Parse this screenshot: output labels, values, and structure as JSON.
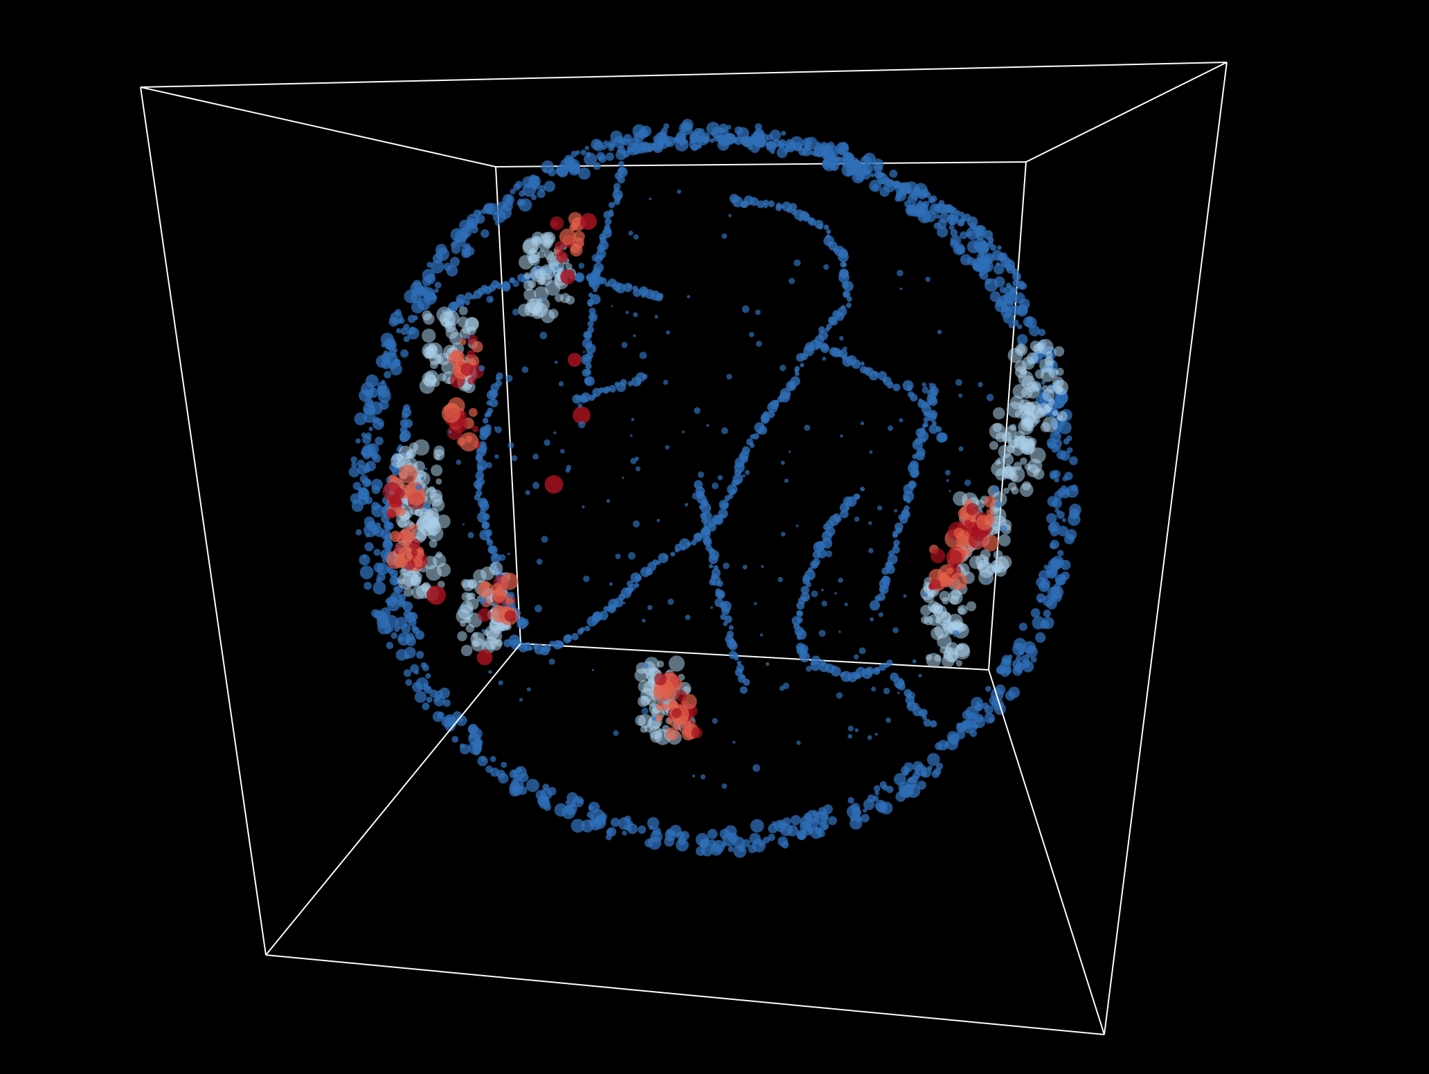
{
  "chart_data": {
    "type": "scatter",
    "projection": "3d-orthographic-globe",
    "title": "",
    "legend": "none",
    "grid": false,
    "axis_box": true,
    "colors": {
      "background": "#000000",
      "box": "#ffffff",
      "shallow": "#2f6fb8",
      "mid": "#a9cde8",
      "deep": "#e0604a",
      "deepest": "#a6121f"
    },
    "series": [
      {
        "name": "",
        "depth_class": "shallow",
        "polyline": true,
        "points": [
          [
            1060,
            290
          ],
          [
            1140,
            300
          ],
          [
            1190,
            330
          ],
          [
            1220,
            380
          ],
          [
            1225,
            440
          ],
          [
            1190,
            480
          ],
          [
            1160,
            520
          ],
          [
            1140,
            560
          ],
          [
            1110,
            600
          ]
        ]
      },
      {
        "name": "",
        "depth_class": "shallow",
        "polyline": true,
        "points": [
          [
            1110,
            600
          ],
          [
            1080,
            650
          ],
          [
            1060,
            700
          ],
          [
            1045,
            740
          ],
          [
            1020,
            770
          ],
          [
            985,
            790
          ]
        ]
      },
      {
        "name": "",
        "depth_class": "shallow",
        "polyline": true,
        "points": [
          [
            985,
            790
          ],
          [
            930,
            830
          ],
          [
            880,
            880
          ],
          [
            830,
            920
          ],
          [
            780,
            940
          ],
          [
            730,
            925
          ]
        ]
      },
      {
        "name": "",
        "depth_class": "shallow",
        "polyline": true,
        "points": [
          [
            1350,
            560
          ],
          [
            1330,
            640
          ],
          [
            1310,
            720
          ],
          [
            1290,
            800
          ],
          [
            1265,
            880
          ]
        ]
      },
      {
        "name": "",
        "depth_class": "shallow",
        "polyline": true,
        "points": [
          [
            720,
            540
          ],
          [
            700,
            620
          ],
          [
            690,
            700
          ],
          [
            705,
            780
          ],
          [
            730,
            860
          ],
          [
            760,
            910
          ]
        ]
      },
      {
        "name": "",
        "depth_class": "shallow",
        "polyline": true,
        "points": [
          [
            830,
            580
          ],
          [
            880,
            560
          ],
          [
            940,
            545
          ]
        ]
      },
      {
        "name": "",
        "depth_class": "shallow",
        "polyline": true,
        "points": [
          [
            900,
            220
          ],
          [
            970,
            205
          ],
          [
            1040,
            200
          ],
          [
            1110,
            205
          ],
          [
            1180,
            220
          ],
          [
            1250,
            245
          ],
          [
            1320,
            275
          ],
          [
            1390,
            310
          ],
          [
            1440,
            360
          ],
          [
            1480,
            420
          ]
        ]
      },
      {
        "name": "",
        "depth_class": "shallow",
        "polyline": true,
        "points": [
          [
            1010,
            700
          ],
          [
            1020,
            760
          ],
          [
            1035,
            840
          ],
          [
            1055,
            920
          ],
          [
            1080,
            1000
          ]
        ]
      },
      {
        "name": "",
        "depth_class": "shallow",
        "polyline": true,
        "points": [
          [
            590,
            590
          ],
          [
            580,
            650
          ],
          [
            560,
            720
          ],
          [
            560,
            800
          ],
          [
            575,
            860
          ],
          [
            610,
            920
          ]
        ]
      },
      {
        "name": "",
        "depth_class": "shallow",
        "polyline": true,
        "points": [
          [
            640,
            450
          ],
          [
            700,
            420
          ],
          [
            760,
            400
          ],
          [
            800,
            390
          ],
          [
            840,
            400
          ],
          [
            880,
            410
          ],
          [
            920,
            420
          ],
          [
            960,
            430
          ]
        ]
      },
      {
        "name": "",
        "depth_class": "shallow",
        "polyline": true,
        "points": [
          [
            1310,
            560
          ],
          [
            1345,
            600
          ],
          [
            1360,
            640
          ]
        ]
      },
      {
        "name": "",
        "depth_class": "shallow",
        "polyline": true,
        "points": [
          [
            1245,
            710
          ],
          [
            1200,
            760
          ],
          [
            1170,
            830
          ],
          [
            1150,
            900
          ],
          [
            1160,
            950
          ],
          [
            1230,
            980
          ],
          [
            1290,
            960
          ]
        ]
      },
      {
        "name": "",
        "depth_class": "shallow",
        "polyline": true,
        "points": [
          [
            1295,
            980
          ],
          [
            1320,
            1020
          ],
          [
            1350,
            1050
          ]
        ]
      },
      {
        "name": "",
        "depth_class": "shallow",
        "polyline": true,
        "points": [
          [
            1190,
            500
          ],
          [
            1300,
            560
          ]
        ]
      },
      {
        "name": "",
        "depth_class": "shallow",
        "polyline": true,
        "points": [
          [
            900,
            240
          ],
          [
            880,
            320
          ],
          [
            860,
            400
          ],
          [
            850,
            480
          ],
          [
            850,
            560
          ]
        ]
      }
    ],
    "deep_points": [
      [
        850,
        320
      ],
      [
        820,
        400
      ],
      [
        830,
        520
      ],
      [
        840,
        600
      ],
      [
        800,
        700
      ],
      [
        700,
        950
      ],
      [
        630,
        860
      ]
    ]
  }
}
